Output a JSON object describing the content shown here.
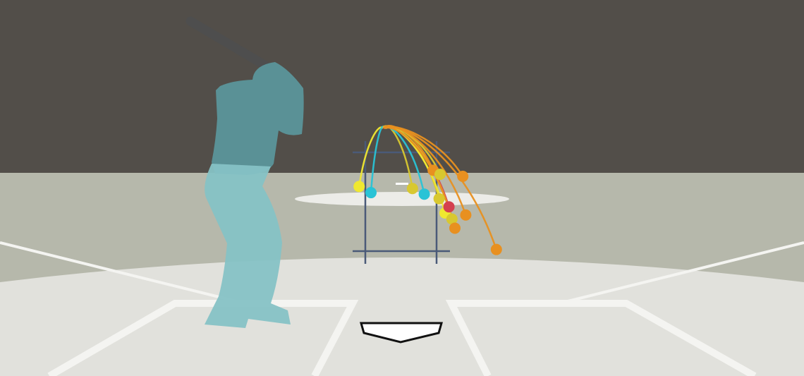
{
  "scene": {
    "view": "catcher-perspective",
    "batter_handedness": "right"
  },
  "colors": {
    "sky": "#524e49",
    "outfield_grass": "#b6b8ab",
    "infield_dirt": "#e1e1dc",
    "mound": "#ecece8",
    "lines": "#f4f4f1",
    "home_plate": "#ffffff",
    "strike_zone": "#4a5a78",
    "batter": "#5a9196",
    "batter_lower": "#86c2c5",
    "bat": "#4e4e4e"
  },
  "pitch_types": [
    {
      "type": "fastball",
      "color": "#f0e830"
    },
    {
      "type": "sinker",
      "color": "#e89020"
    },
    {
      "type": "cutter",
      "color": "#29c3d6"
    },
    {
      "type": "slider",
      "color": "#d4404f"
    },
    {
      "type": "curveball",
      "color": "#d8c830"
    }
  ],
  "pitches": [
    {
      "type": "fastball",
      "plate_x": -0.84,
      "plate_z": 0.3
    },
    {
      "type": "cutter",
      "plate_x": -0.6,
      "plate_z": 0.18
    },
    {
      "type": "curveball",
      "plate_x": 0.24,
      "plate_z": 0.26
    },
    {
      "type": "cutter",
      "plate_x": 0.48,
      "plate_z": 0.15
    },
    {
      "type": "curveball",
      "plate_x": 0.78,
      "plate_z": 0.06
    },
    {
      "type": "fastball",
      "plate_x": 0.9,
      "plate_z": -0.22
    },
    {
      "type": "slider",
      "plate_x": 0.98,
      "plate_z": -0.1
    },
    {
      "type": "curveball",
      "plate_x": 1.04,
      "plate_z": -0.34
    },
    {
      "type": "sinker",
      "plate_x": 0.66,
      "plate_z": 0.62
    },
    {
      "type": "curveball",
      "plate_x": 0.8,
      "plate_z": 0.54
    },
    {
      "type": "sinker",
      "plate_x": 1.26,
      "plate_z": 0.5
    },
    {
      "type": "sinker",
      "plate_x": 1.32,
      "plate_z": -0.26
    },
    {
      "type": "sinker",
      "plate_x": 1.1,
      "plate_z": -0.52
    },
    {
      "type": "sinker",
      "plate_x": 1.94,
      "plate_z": -0.94
    }
  ]
}
